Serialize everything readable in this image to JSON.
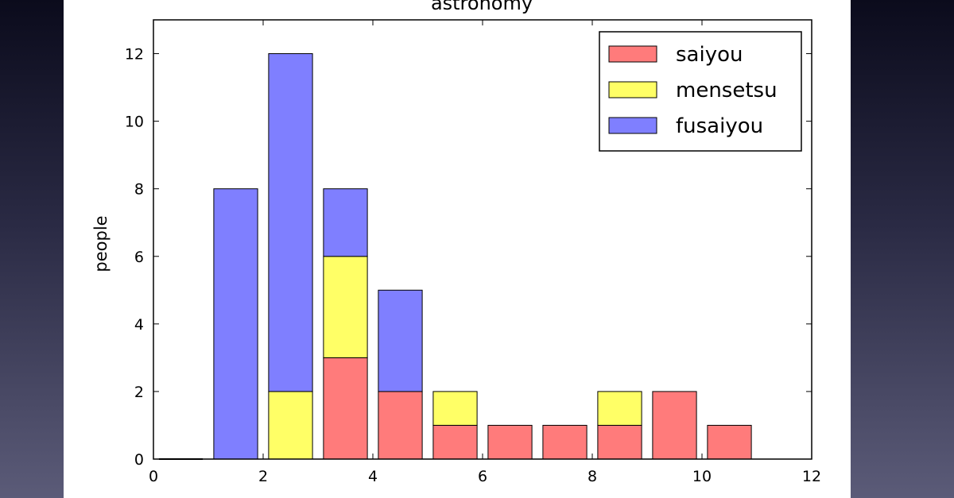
{
  "chart_data": {
    "type": "bar",
    "stacked": true,
    "title": "astronomy",
    "xlabel": "",
    "ylabel": "people",
    "xlim": [
      0,
      12
    ],
    "ylim": [
      0,
      13
    ],
    "x_ticks": [
      0,
      2,
      4,
      6,
      8,
      10,
      12
    ],
    "y_ticks": [
      0,
      2,
      4,
      6,
      8,
      10,
      12
    ],
    "bar_width": 0.8,
    "categories": [
      0.5,
      1.5,
      2.5,
      3.5,
      4.5,
      5.5,
      6.5,
      7.5,
      8.5,
      9.5,
      10.5
    ],
    "series": [
      {
        "name": "saiyou",
        "color": "#ff7b7b",
        "values": [
          0,
          0,
          0,
          3,
          2,
          1,
          1,
          1,
          1,
          2,
          1
        ]
      },
      {
        "name": "mensetsu",
        "color": "#ffff66",
        "values": [
          0,
          0,
          2,
          3,
          0,
          1,
          0,
          0,
          1,
          0,
          0
        ]
      },
      {
        "name": "fusaiyou",
        "color": "#7f7fff",
        "values": [
          0,
          8,
          10,
          2,
          3,
          0,
          0,
          0,
          0,
          0,
          0
        ]
      }
    ],
    "legend": {
      "position": "top-right",
      "entries": [
        "saiyou",
        "mensetsu",
        "fusaiyou"
      ]
    },
    "grid": false
  }
}
